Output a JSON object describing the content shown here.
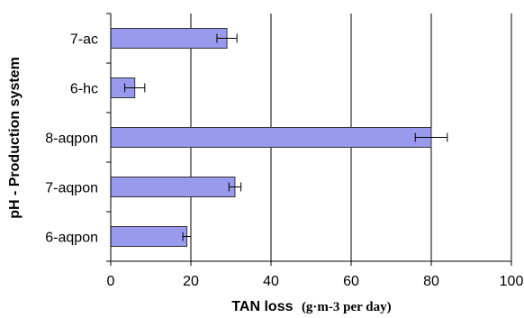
{
  "chart_data": {
    "type": "bar",
    "orientation": "horizontal",
    "categories": [
      "6-aqpon",
      "7-aqpon",
      "8-aqpon",
      "6-hc",
      "7-ac"
    ],
    "values": [
      19,
      31,
      80,
      6,
      29
    ],
    "error": [
      1,
      1.5,
      4,
      2.5,
      2.5
    ],
    "xlim": [
      0,
      100
    ],
    "xticks": [
      0,
      20,
      40,
      60,
      80,
      100
    ],
    "xlabel": "TAN loss",
    "xlabel_unit": "(g·m-3 per day)",
    "ylabel": "pH - Production system",
    "grid": "vertical",
    "colors": {
      "bar_fill": "#9999ee",
      "bar_stroke": "#333333",
      "grid": "#000000",
      "axis": "#000000",
      "error_bar": "#000000"
    }
  }
}
